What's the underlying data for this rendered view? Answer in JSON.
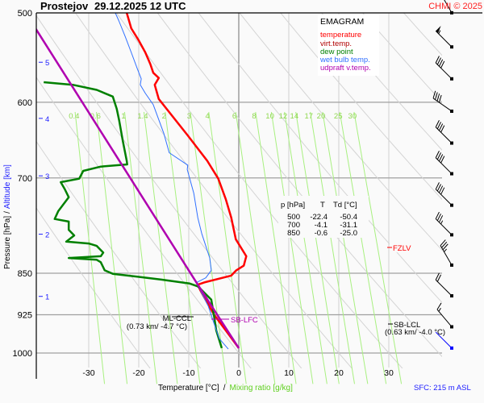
{
  "header": {
    "station": "Prostejov",
    "datetime": "29.12.2025 12 UTC",
    "copyright": "CHMI © 2025"
  },
  "legend": {
    "title": "EMAGRAM",
    "items": [
      {
        "label": "temperature",
        "color": "#ff0000"
      },
      {
        "label": "virt.temp.",
        "color": "#b00000"
      },
      {
        "label": "dew point",
        "color": "#008000"
      },
      {
        "label": "wet bulb temp.",
        "color": "#3070ff"
      },
      {
        "label": "udpraft v.temp.",
        "color": "#b000b0"
      }
    ]
  },
  "table": {
    "headers": [
      "p [hPa]",
      "T",
      "Td [°C]"
    ],
    "rows": [
      [
        "500",
        "-22.4",
        "-50.4"
      ],
      [
        "700",
        "-4.1",
        "-31.1"
      ],
      [
        "850",
        "-0.6",
        "-25.0"
      ]
    ]
  },
  "annotations": {
    "ml_ccl": {
      "label": "ML-CCL",
      "detail": "(0.73 km/ -4.7 °C)",
      "p": 922,
      "T": -4.7
    },
    "sb_lfc": {
      "label": "SB-LFC",
      "p": 928,
      "T": -4.0
    },
    "sb_lcl": {
      "label": "SB-LCL",
      "detail": "(0.63 km/ -4.0 °C)",
      "p": 935
    },
    "fzlv": {
      "label": "FZLV",
      "p": 812
    },
    "sfc": "SFC: 215 m ASL"
  },
  "chart_data": {
    "type": "line",
    "title": "Prostejov 29.12.2025 12 UTC - EMAGRAM",
    "xlabel": "Temperature [°C]",
    "xlabel_sep": "/",
    "xlabel2": "Mixing ratio [g/kg]",
    "ylabel": "Pressure [hPa]",
    "ylabel_sep": "/",
    "ylabel2": "Altitude [km]",
    "xlim": [
      -40.5,
      40.5
    ],
    "ylim": [
      1030,
      500
    ],
    "x_ticks": [
      -30,
      -20,
      -10,
      0,
      10,
      20,
      30
    ],
    "p_ticks": [
      500,
      600,
      700,
      850,
      925,
      1000
    ],
    "altitude_ticks": [
      {
        "km": "1",
        "p": 891
      },
      {
        "km": "2",
        "p": 785
      },
      {
        "km": "3",
        "p": 697
      },
      {
        "km": "4",
        "p": 620
      },
      {
        "km": "5",
        "p": 553
      }
    ],
    "mixing_ratios": [
      0.4,
      0.6,
      1,
      1.4,
      2,
      3,
      4,
      6,
      8,
      10,
      12,
      14,
      17,
      20,
      25,
      30
    ],
    "dry_adiabats_theta_c": [
      -20,
      -10,
      0,
      10,
      20,
      30,
      40,
      50,
      60,
      70,
      80,
      90,
      100,
      110
    ],
    "series": [
      {
        "name": "temperature",
        "color": "#ff0000",
        "width": 2.5,
        "points": [
          [
            500,
            -22.4
          ],
          [
            516,
            -21.5
          ],
          [
            529,
            -20.0
          ],
          [
            542,
            -18.7
          ],
          [
            555,
            -17.7
          ],
          [
            565,
            -17.1
          ],
          [
            571,
            -16.0
          ],
          [
            579,
            -16.8
          ],
          [
            596,
            -16.0
          ],
          [
            642,
            -10.2
          ],
          [
            676,
            -6.3
          ],
          [
            701,
            -4.1
          ],
          [
            731,
            -2.6
          ],
          [
            759,
            -1.5
          ],
          [
            793,
            -0.6
          ],
          [
            821,
            1.5
          ],
          [
            837,
            1.0
          ],
          [
            845,
            -0.5
          ],
          [
            854,
            -1.5
          ],
          [
            866,
            -6.9
          ],
          [
            870,
            -8.2
          ],
          [
            880,
            -7.7
          ],
          [
            924,
            -5.0
          ],
          [
            955,
            -2.6
          ],
          [
            990,
            0.0
          ]
        ]
      },
      {
        "name": "dew point",
        "color": "#008000",
        "width": 2.5,
        "points": [
          [
            576,
            -39.0
          ],
          [
            579,
            -33.2
          ],
          [
            585,
            -28.4
          ],
          [
            593,
            -25.2
          ],
          [
            608,
            -24.4
          ],
          [
            623,
            -23.9
          ],
          [
            649,
            -23.2
          ],
          [
            676,
            -22.4
          ],
          [
            681,
            -22.3
          ],
          [
            684,
            -27.6
          ],
          [
            690,
            -31.1
          ],
          [
            701,
            -31.9
          ],
          [
            706,
            -35.6
          ],
          [
            716,
            -34.8
          ],
          [
            728,
            -34.0
          ],
          [
            749,
            -36.1
          ],
          [
            761,
            -36.8
          ],
          [
            765,
            -34.0
          ],
          [
            778,
            -34.0
          ],
          [
            787,
            -32.9
          ],
          [
            797,
            -34.5
          ],
          [
            800,
            -30.0
          ],
          [
            804,
            -28.4
          ],
          [
            815,
            -27.1
          ],
          [
            821,
            -27.6
          ],
          [
            824,
            -34.0
          ],
          [
            827,
            -28.4
          ],
          [
            831,
            -27.6
          ],
          [
            845,
            -26.8
          ],
          [
            851,
            -25.2
          ],
          [
            856,
            -20.3
          ],
          [
            861,
            -15.5
          ],
          [
            868,
            -9.8
          ],
          [
            873,
            -8.2
          ],
          [
            877,
            -7.7
          ],
          [
            897,
            -5.5
          ],
          [
            924,
            -5.0
          ],
          [
            955,
            -4.5
          ],
          [
            990,
            -3.4
          ]
        ]
      },
      {
        "name": "wet bulb temp.",
        "color": "#3070ff",
        "width": 1,
        "points": [
          [
            500,
            -24.7
          ],
          [
            508,
            -24.0
          ],
          [
            525,
            -22.7
          ],
          [
            542,
            -21.5
          ],
          [
            560,
            -20.3
          ],
          [
            572,
            -19.5
          ],
          [
            579,
            -19.7
          ],
          [
            589,
            -18.7
          ],
          [
            603,
            -17.1
          ],
          [
            639,
            -15.0
          ],
          [
            665,
            -13.9
          ],
          [
            682,
            -10.2
          ],
          [
            688,
            -10.3
          ],
          [
            722,
            -9.0
          ],
          [
            759,
            -8.2
          ],
          [
            784,
            -7.4
          ],
          [
            824,
            -5.8
          ],
          [
            845,
            -5.5
          ],
          [
            858,
            -6.6
          ],
          [
            866,
            -8.4
          ],
          [
            880,
            -7.7
          ],
          [
            909,
            -6.1
          ],
          [
            940,
            -5.0
          ],
          [
            971,
            -3.9
          ],
          [
            992,
            -2.1
          ]
        ]
      },
      {
        "name": "udpraft v.temp.",
        "color": "#b000b0",
        "width": 2.5,
        "points": [
          [
            505,
            -42.0
          ],
          [
            870,
            -8.2
          ],
          [
            990,
            0.0
          ]
        ]
      }
    ],
    "winds": [
      {
        "p": 500,
        "dir": 330,
        "kt": 50
      },
      {
        "p": 536,
        "dir": 315,
        "kt": 55
      },
      {
        "p": 572,
        "dir": 315,
        "kt": 40
      },
      {
        "p": 611,
        "dir": 305,
        "kt": 40
      },
      {
        "p": 652,
        "dir": 315,
        "kt": 40
      },
      {
        "p": 694,
        "dir": 315,
        "kt": 40
      },
      {
        "p": 740,
        "dir": 315,
        "kt": 40
      },
      {
        "p": 786,
        "dir": 315,
        "kt": 35
      },
      {
        "p": 836,
        "dir": 330,
        "kt": 35
      },
      {
        "p": 890,
        "dir": 315,
        "kt": 20
      },
      {
        "p": 948,
        "dir": 320,
        "kt": 15
      },
      {
        "p": 990,
        "dir": 315,
        "kt": 5,
        "surface": true
      }
    ]
  }
}
